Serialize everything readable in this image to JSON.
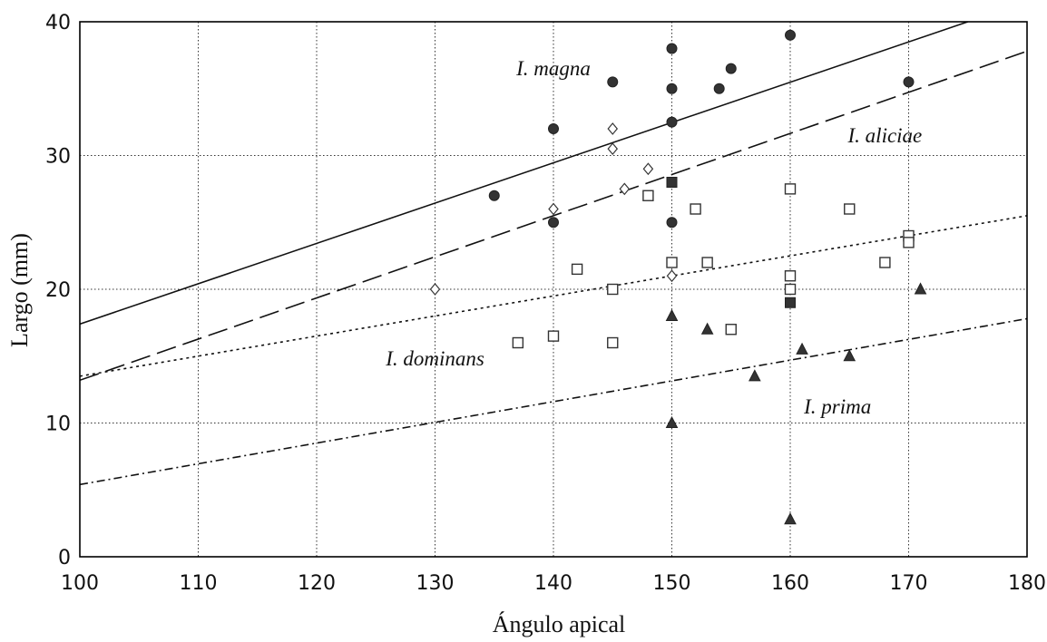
{
  "chart_data": {
    "type": "scatter",
    "xlabel": "Ángulo apical",
    "ylabel": "Largo (mm)",
    "xlim": [
      100,
      180
    ],
    "ylim": [
      0,
      40
    ],
    "xticks": [
      "100",
      "110",
      "120",
      "130",
      "140",
      "150",
      "160",
      "170",
      "180"
    ],
    "yticks": [
      "0",
      "10",
      "20",
      "30",
      "40"
    ],
    "grid": true,
    "series": [
      {
        "name": "I. magna",
        "marker": "filled-circle",
        "line": "solid",
        "line_points": [
          [
            100,
            17.4
          ],
          [
            175,
            40
          ]
        ],
        "points": [
          [
            135,
            27
          ],
          [
            140,
            32
          ],
          [
            140,
            25
          ],
          [
            145,
            35.5
          ],
          [
            150,
            38
          ],
          [
            150,
            35
          ],
          [
            150,
            32.5
          ],
          [
            150,
            28
          ],
          [
            150,
            25
          ],
          [
            154,
            35
          ],
          [
            155,
            36.5
          ],
          [
            160,
            39
          ],
          [
            170,
            35.5
          ]
        ]
      },
      {
        "name": "I. aliciae",
        "marker": "open-diamond",
        "line": "long-dash",
        "line_points": [
          [
            100,
            13.2
          ],
          [
            180,
            37.8
          ]
        ],
        "points": [
          [
            130,
            20
          ],
          [
            140,
            26
          ],
          [
            145,
            32
          ],
          [
            145,
            30.5
          ],
          [
            146,
            27.5
          ],
          [
            148,
            29
          ],
          [
            150,
            21
          ]
        ]
      },
      {
        "name": "I. dominans",
        "marker": "open-square",
        "line": "dotted",
        "line_points": [
          [
            100,
            13.5
          ],
          [
            180,
            25.5
          ]
        ],
        "points": [
          [
            137,
            16
          ],
          [
            140,
            16.5
          ],
          [
            142,
            21.5
          ],
          [
            145,
            20
          ],
          [
            145,
            16
          ],
          [
            148,
            27
          ],
          [
            150,
            22
          ],
          [
            152,
            26
          ],
          [
            153,
            22
          ],
          [
            155,
            17
          ],
          [
            160,
            27.5
          ],
          [
            160,
            21
          ],
          [
            160,
            20
          ],
          [
            165,
            26
          ],
          [
            168,
            22
          ],
          [
            170,
            24
          ],
          [
            170,
            23.5
          ]
        ]
      },
      {
        "name": "I. prima",
        "marker": "filled-triangle",
        "line": "dash-dot",
        "line_points": [
          [
            100,
            5.4
          ],
          [
            180,
            17.8
          ]
        ],
        "points": [
          [
            150,
            18
          ],
          [
            150,
            10
          ],
          [
            153,
            17
          ],
          [
            157,
            13.5
          ],
          [
            160,
            2.8
          ],
          [
            161,
            15.5
          ],
          [
            165,
            15
          ],
          [
            171,
            20
          ]
        ]
      },
      {
        "name": "",
        "marker": "filled-square",
        "line": "none",
        "points": [
          [
            150,
            28
          ],
          [
            160,
            19
          ]
        ]
      }
    ],
    "annotations": [
      {
        "text": "I. magna",
        "x": 140,
        "y": 36
      },
      {
        "text": "I. aliciae",
        "x": 168,
        "y": 31
      },
      {
        "text": "I. dominans",
        "x": 130,
        "y": 14.3
      },
      {
        "text": "I. prima",
        "x": 164,
        "y": 10.7
      }
    ]
  }
}
